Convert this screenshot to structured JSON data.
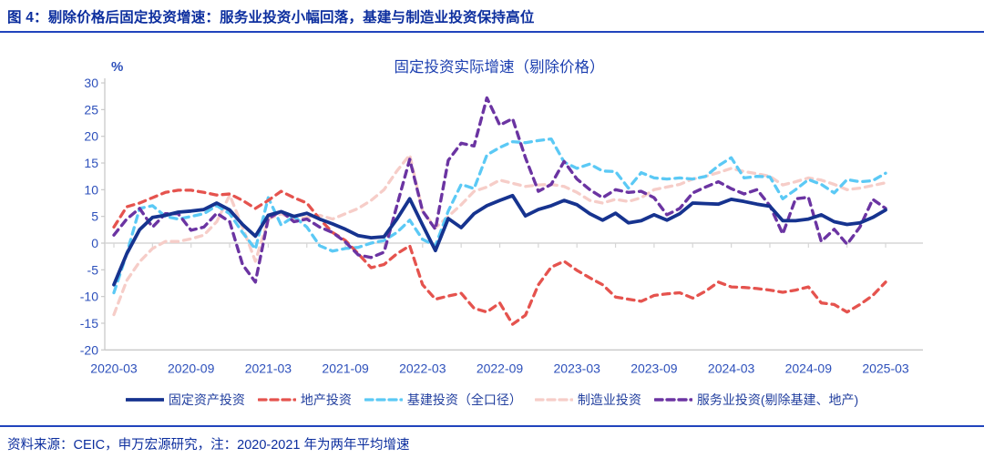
{
  "header": {
    "title": "图 4：剔除价格后固定投资增速：服务业投资小幅回落，基建与制造业投资保持高位"
  },
  "chart_data": {
    "type": "line",
    "title": "固定投资实际增速（剔除价格）",
    "unit_label": "%",
    "ylim": [
      -20,
      30
    ],
    "ytick_step": 5,
    "grid": "zero-line-only",
    "legend_position": "bottom",
    "axis_text_color": "#2d50bb",
    "title_color": "#1c3fb0",
    "axis_line_color": "#c9c9c9",
    "zero_line_color": "#d6d6d6",
    "x_ticks": [
      "2020-03",
      "2020-09",
      "2021-03",
      "2021-09",
      "2022-03",
      "2022-09",
      "2023-03",
      "2023-09",
      "2024-03",
      "2024-09",
      "2025-03"
    ],
    "x_months": [
      "2020-03",
      "2020-04",
      "2020-05",
      "2020-06",
      "2020-07",
      "2020-08",
      "2020-09",
      "2020-10",
      "2020-11",
      "2020-12",
      "2021-01",
      "2021-02",
      "2021-03",
      "2021-04",
      "2021-05",
      "2021-06",
      "2021-07",
      "2021-08",
      "2021-09",
      "2021-10",
      "2021-11",
      "2021-12",
      "2022-01",
      "2022-02",
      "2022-03",
      "2022-04",
      "2022-05",
      "2022-06",
      "2022-07",
      "2022-08",
      "2022-09",
      "2022-10",
      "2022-11",
      "2022-12",
      "2023-01",
      "2023-02",
      "2023-03",
      "2023-04",
      "2023-05",
      "2023-06",
      "2023-07",
      "2023-08",
      "2023-09",
      "2023-10",
      "2023-11",
      "2023-12",
      "2024-01",
      "2024-02",
      "2024-03",
      "2024-04",
      "2024-05",
      "2024-06",
      "2024-07",
      "2024-08",
      "2024-09",
      "2024-10",
      "2024-11",
      "2024-12",
      "2025-01",
      "2025-02",
      "2025-03"
    ],
    "series": [
      {
        "name": "固定资产投资",
        "color": "#16338f",
        "style": "solid",
        "width": 3.8,
        "values": [
          -7.8,
          -2,
          2.5,
          4.8,
          5.2,
          5.8,
          6,
          6.3,
          7.5,
          6.2,
          3.5,
          1.3,
          5.2,
          5.9,
          5,
          5.6,
          4.5,
          3.6,
          2.6,
          1.4,
          1,
          1.2,
          4.5,
          8.3,
          3.4,
          -1.4,
          4.6,
          2.9,
          5.5,
          7,
          8,
          8.9,
          5.1,
          6.3,
          7,
          8,
          7.2,
          5.5,
          4.3,
          5.6,
          3.8,
          4.2,
          5.3,
          4.3,
          5.5,
          7.5,
          7.4,
          7.3,
          8.2,
          7.8,
          7.3,
          6.9,
          4.2,
          4.2,
          4.5,
          5.3,
          4,
          3.5,
          3.8,
          4.8,
          6.2
        ]
      },
      {
        "name": "地产投资",
        "color": "#e5534e",
        "style": "dashed",
        "width": 3.3,
        "values": [
          3,
          6.8,
          7.5,
          8.5,
          9.5,
          9.9,
          9.9,
          9.5,
          9,
          9.2,
          8,
          6.5,
          8,
          9.7,
          8.5,
          7.5,
          4.5,
          2,
          0.5,
          -2,
          -4.6,
          -4,
          -2,
          -0.5,
          -7.8,
          -10.5,
          -9.9,
          -9.4,
          -12.2,
          -12.9,
          -11.2,
          -15.2,
          -13.5,
          -7.8,
          -4.5,
          -3.4,
          -5.1,
          -6.5,
          -7.8,
          -10.1,
          -10.5,
          -10.9,
          -9.8,
          -9.5,
          -9.3,
          -10.3,
          -9,
          -7.3,
          -8.2,
          -8.3,
          -8.5,
          -8.8,
          -9.2,
          -8.8,
          -8.2,
          -11.2,
          -11.5,
          -12.9,
          -11.5,
          -9.8,
          -7.3
        ]
      },
      {
        "name": "基建投资（全口径）",
        "color": "#5bc9f5",
        "style": "dashed",
        "width": 3.3,
        "values": [
          -9.3,
          -2,
          6.5,
          7,
          5,
          4.5,
          5,
          5.5,
          7,
          5.5,
          2,
          -1.1,
          8.5,
          3.4,
          5,
          3,
          -0.5,
          -1.5,
          -1,
          -0.8,
          0,
          0.5,
          2,
          4.3,
          0.7,
          -0.5,
          6,
          11,
          10.2,
          16.5,
          17.9,
          19,
          18.8,
          19.2,
          19.5,
          15.2,
          14,
          14.8,
          13.5,
          13.4,
          10.3,
          13.2,
          12.2,
          12,
          12.2,
          12,
          12.5,
          14.5,
          16,
          12.2,
          12.5,
          12.4,
          8.3,
          10,
          11.9,
          11,
          9.4,
          11.9,
          11.5,
          11.7,
          13.1
        ]
      },
      {
        "name": "制造业投资",
        "color": "#f6cdc8",
        "style": "dashed",
        "width": 3.3,
        "values": [
          -13.4,
          -7,
          -3.5,
          -1,
          0.3,
          0.3,
          0.8,
          1.5,
          4,
          9,
          3,
          -3.4,
          4.5,
          5.5,
          4.5,
          4.8,
          5.2,
          4.5,
          5.5,
          6.5,
          8,
          10,
          13.5,
          16.5,
          6,
          2.9,
          5,
          7.2,
          9.7,
          10.5,
          11.8,
          11.2,
          10.6,
          10.9,
          11,
          10.6,
          9.5,
          8,
          7.5,
          8.2,
          7.8,
          8.5,
          10,
          10.5,
          11,
          12,
          12.5,
          13.2,
          14,
          13.4,
          13,
          12.5,
          10.9,
          11.5,
          12.2,
          11.8,
          11,
          10,
          10.3,
          10.8,
          11.3
        ]
      },
      {
        "name": "服务业投资(剔除基建、地产)",
        "color": "#6b34a2",
        "style": "dashed",
        "width": 3.4,
        "values": [
          1.5,
          4.5,
          6.5,
          3,
          5.5,
          5.5,
          2.4,
          3,
          5.6,
          4,
          -4,
          -7.3,
          4.6,
          6,
          4,
          4.5,
          3,
          2,
          0.2,
          -2.2,
          -2.7,
          -1.7,
          7,
          15.7,
          6,
          2.6,
          15.5,
          18.7,
          18.2,
          27.2,
          22.1,
          23.3,
          16,
          9.7,
          11,
          15.3,
          12,
          10,
          8.5,
          10,
          9.5,
          9.7,
          8.5,
          5.3,
          6.5,
          9.4,
          10.5,
          11.5,
          10.2,
          9.2,
          10,
          7,
          1.7,
          8.3,
          8.6,
          0.3,
          2.6,
          -0.2,
          3,
          8.2,
          6.5
        ]
      }
    ]
  },
  "footer": {
    "source": "资料来源：CEIC，申万宏源研究，注：2020-2021 年为两年平均增速"
  }
}
